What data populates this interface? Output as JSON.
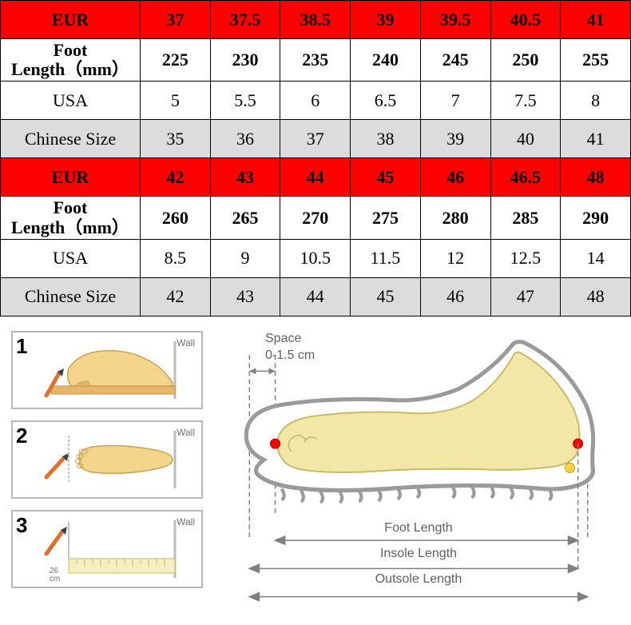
{
  "table": {
    "columns": [
      "label",
      "c1",
      "c2",
      "c3",
      "c4",
      "c5",
      "c6",
      "c7"
    ],
    "label_col_width": 175,
    "rows": [
      {
        "type": "header",
        "bg": "#ff0000",
        "bold": true,
        "cells": [
          "EUR",
          "37",
          "37.5",
          "38.5",
          "39",
          "39.5",
          "40.5",
          "41"
        ]
      },
      {
        "type": "data",
        "bold": true,
        "label_twoline": true,
        "cells": [
          "Foot Length（mm）",
          "225",
          "230",
          "235",
          "240",
          "245",
          "250",
          "255"
        ]
      },
      {
        "type": "data",
        "cells": [
          "USA",
          "5",
          "5.5",
          "6",
          "6.5",
          "7",
          "7.5",
          "8"
        ]
      },
      {
        "type": "data",
        "bg": "#dcdcdc",
        "cells": [
          "Chinese Size",
          "35",
          "36",
          "37",
          "38",
          "39",
          "40",
          "41"
        ]
      },
      {
        "type": "header",
        "bg": "#ff0000",
        "bold": true,
        "cells": [
          "EUR",
          "42",
          "43",
          "44",
          "45",
          "46",
          "46.5",
          "48"
        ]
      },
      {
        "type": "data",
        "bold": true,
        "label_twoline": true,
        "cells": [
          "Foot Length（mm）",
          "260",
          "265",
          "270",
          "275",
          "280",
          "285",
          "290"
        ]
      },
      {
        "type": "data",
        "cells": [
          "USA",
          "8.5",
          "9",
          "10.5",
          "11.5",
          "12",
          "12.5",
          "14"
        ]
      },
      {
        "type": "data",
        "bg": "#dcdcdc",
        "cells": [
          "Chinese Size",
          "42",
          "43",
          "44",
          "45",
          "46",
          "47",
          "48"
        ]
      }
    ],
    "cell_fontsize": 22,
    "border_color": "#000000"
  },
  "steps": {
    "items": [
      {
        "num": "1",
        "wall": "Wall"
      },
      {
        "num": "2",
        "wall": "Wall"
      },
      {
        "num": "3",
        "wall": "Wall",
        "ruler": "26\ncm"
      }
    ],
    "border_color": "#b9b9b9"
  },
  "diagram": {
    "space_label": "Space\n0-1.5 cm",
    "foot_length_label": "Foot Length",
    "insole_length_label": "Insole Length",
    "outsole_length_label": "Outsole Length",
    "shoe_outline_color": "#9a9a9a",
    "shoe_fill": "#ffffff",
    "foot_fill": "#f2e7a7",
    "foot_stroke": "#c9bb63",
    "dot_fill": "#ff0000",
    "guide_color": "#808080"
  }
}
